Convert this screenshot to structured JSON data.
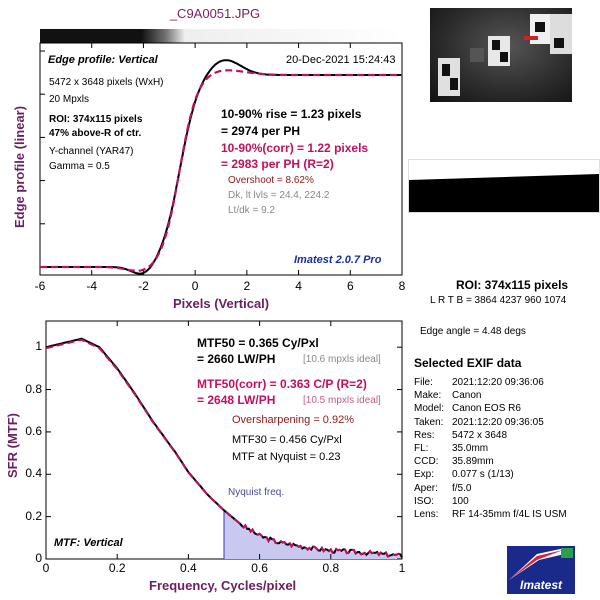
{
  "title": "_C9A0051.JPG",
  "top_chart": {
    "ylabel": "Edge profile (linear)",
    "xlabel": "Pixels (Vertical)",
    "heading": "Edge profile: Vertical",
    "timestamp": "20-Dec-2021 15:24:43",
    "info_lines": [
      "5472 x 3648 pixels (WxH)",
      "20 Mpxls"
    ],
    "roi_lines": [
      "ROI: 374x115 pixels",
      "47% above-R of ctr."
    ],
    "channel_lines": [
      "Y-channel  (YAR47)",
      "Gamma = 0.5"
    ],
    "rise_lines": [
      "10-90% rise = 1.23 pixels",
      "= 2974 per PH"
    ],
    "rise_corr_lines": [
      "10-90%(corr) = 1.22 pixels",
      "= 2983 per PH  (R=2)"
    ],
    "overshoot": "Overshoot = 8.62%",
    "dk_lines": [
      "Dk, lt lvls = 24.4, 224.2",
      "Lt/dk = 9.2"
    ],
    "version": "Imatest 2.0.7 Pro",
    "x_ticks": [
      "-6",
      "-4",
      "-2",
      "0",
      "2",
      "4",
      "6",
      "8"
    ]
  },
  "bottom_chart": {
    "ylabel": "SFR (MTF)",
    "xlabel": "Frequency, Cycles/pixel",
    "heading": "MTF: Vertical",
    "mtf50_lines": [
      "MTF50 = 0.365 Cy/Pxl",
      "= 2660 LW/PH"
    ],
    "mtf50_ideal": "[10.6 mpxls ideal]",
    "mtf50corr_lines": [
      "MTF50(corr) = 0.363 C/P  (R=2)",
      "= 2648 LW/PH"
    ],
    "mtf50corr_ideal": "[10.5 mpxls ideal]",
    "oversharpening": "Oversharpening = 0.92%",
    "mtf30": "MTF30 = 0.456 Cy/Pxl",
    "mtf_nyquist": "MTF at Nyquist = 0.23",
    "nyquist_label": "Nyquist freq.",
    "x_ticks": [
      "0",
      "0.2",
      "0.4",
      "0.6",
      "0.8",
      "1"
    ],
    "y_ticks": [
      "0",
      "0.2",
      "0.4",
      "0.6",
      "0.8",
      "1"
    ]
  },
  "right_panel": {
    "roi_title": "ROI: 374x115 pixels",
    "roi_coords": "L R  T B = 3864 4237  960 1074",
    "edge_angle": "Edge angle = 4.48 degs",
    "exif_title": "Selected EXIF data",
    "exif": [
      {
        "k": "File:",
        "v": "2021:12:20 09:36:06"
      },
      {
        "k": "Make:",
        "v": "Canon"
      },
      {
        "k": "Model:",
        "v": "Canon EOS R6"
      },
      {
        "k": "Taken:",
        "v": "2021:12:20 09:36:05"
      },
      {
        "k": "Res:",
        "v": "5472 x 3648"
      },
      {
        "k": "FL:",
        "v": "35.0mm"
      },
      {
        "k": "CCD:",
        "v": "35.89mm"
      },
      {
        "k": "Exp:",
        "v": "0.077 s  (1/13)"
      },
      {
        "k": "Aper:",
        "v": "f/5.0"
      },
      {
        "k": "ISO:",
        "v": "100"
      },
      {
        "k": "Lens:",
        "v": "RF 14-35mm f/4L IS USM"
      }
    ],
    "logo_text": "Imatest"
  },
  "colors": {
    "accent": "#6b1f5f",
    "corrected": "#c0115f",
    "nyquist_fill": "#c8c8f0",
    "logo_blue": "#1a2a8a"
  }
}
